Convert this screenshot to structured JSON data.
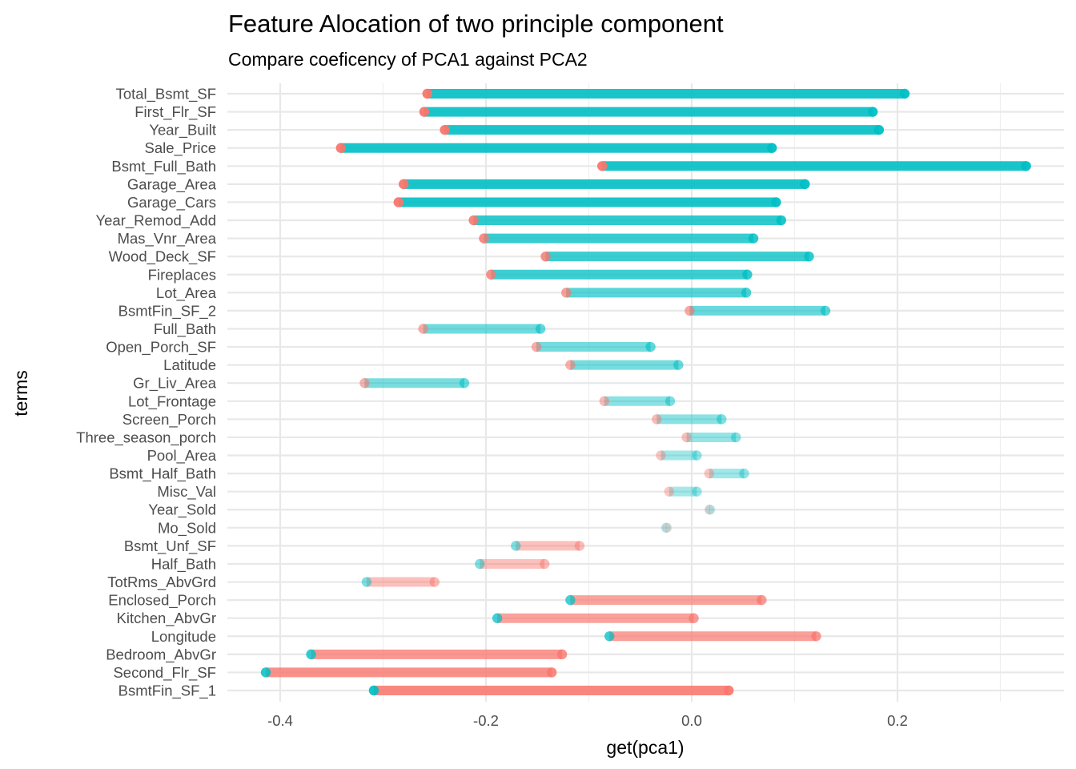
{
  "chart_data": {
    "type": "dumbbell",
    "title": "Feature Alocation of two principle component",
    "subtitle": "Compare coeficency of PCA1 against PCA2",
    "xlabel": "get(pca1)",
    "ylabel": "terms",
    "xlim": [
      -0.445,
      0.362
    ],
    "x_ticks": [
      -0.4,
      -0.2,
      0.0,
      0.2
    ],
    "x_tick_labels": [
      "-0.4",
      "-0.2",
      "0.0",
      "0.2"
    ],
    "x_minor_ticks": [
      -0.3,
      -0.1,
      0.1,
      0.3
    ],
    "grid": true,
    "legend": "none",
    "colors": {
      "red": "#F8766D",
      "teal": "#00BFC4"
    },
    "series": [
      {
        "name": "red",
        "color": "#F8766D"
      },
      {
        "name": "teal",
        "color": "#00BFC4"
      }
    ],
    "rows": [
      {
        "term": "Total_Bsmt_SF",
        "red": -0.257,
        "teal": 0.207
      },
      {
        "term": "First_Flr_SF",
        "red": -0.26,
        "teal": 0.176
      },
      {
        "term": "Year_Built",
        "red": -0.24,
        "teal": 0.182
      },
      {
        "term": "Sale_Price",
        "red": -0.341,
        "teal": 0.078
      },
      {
        "term": "Bsmt_Full_Bath",
        "red": -0.087,
        "teal": 0.325
      },
      {
        "term": "Garage_Area",
        "red": -0.28,
        "teal": 0.11
      },
      {
        "term": "Garage_Cars",
        "red": -0.285,
        "teal": 0.082
      },
      {
        "term": "Year_Remod_Add",
        "red": -0.212,
        "teal": 0.087
      },
      {
        "term": "Mas_Vnr_Area",
        "red": -0.202,
        "teal": 0.06
      },
      {
        "term": "Wood_Deck_SF",
        "red": -0.142,
        "teal": 0.114
      },
      {
        "term": "Fireplaces",
        "red": -0.195,
        "teal": 0.054
      },
      {
        "term": "Lot_Area",
        "red": -0.122,
        "teal": 0.053
      },
      {
        "term": "BsmtFin_SF_2",
        "red": -0.002,
        "teal": 0.13
      },
      {
        "term": "Full_Bath",
        "red": -0.261,
        "teal": -0.147
      },
      {
        "term": "Open_Porch_SF",
        "red": -0.151,
        "teal": -0.04
      },
      {
        "term": "Latitude",
        "red": -0.118,
        "teal": -0.013
      },
      {
        "term": "Gr_Liv_Area",
        "red": -0.318,
        "teal": -0.221
      },
      {
        "term": "Lot_Frontage",
        "red": -0.085,
        "teal": -0.021
      },
      {
        "term": "Screen_Porch",
        "red": -0.034,
        "teal": 0.029
      },
      {
        "term": "Three_season_porch",
        "red": -0.005,
        "teal": 0.043
      },
      {
        "term": "Pool_Area",
        "red": -0.03,
        "teal": 0.005
      },
      {
        "term": "Bsmt_Half_Bath",
        "red": 0.017,
        "teal": 0.051
      },
      {
        "term": "Misc_Val",
        "red": -0.022,
        "teal": 0.005
      },
      {
        "term": "Year_Sold",
        "red": 0.017,
        "teal": 0.018
      },
      {
        "term": "Mo_Sold",
        "red": -0.024,
        "teal": -0.025
      },
      {
        "term": "Bsmt_Unf_SF",
        "red": -0.109,
        "teal": -0.171
      },
      {
        "term": "Half_Bath",
        "red": -0.143,
        "teal": -0.206
      },
      {
        "term": "TotRms_AbvGrd",
        "red": -0.25,
        "teal": -0.316
      },
      {
        "term": "Enclosed_Porch",
        "red": 0.068,
        "teal": -0.118
      },
      {
        "term": "Kitchen_AbvGr",
        "red": 0.002,
        "teal": -0.189
      },
      {
        "term": "Longitude",
        "red": 0.121,
        "teal": -0.08
      },
      {
        "term": "Bedroom_AbvGr",
        "red": -0.126,
        "teal": -0.37
      },
      {
        "term": "Second_Flr_SF",
        "red": -0.136,
        "teal": -0.414
      },
      {
        "term": "BsmtFin_SF_1",
        "red": 0.036,
        "teal": -0.309
      }
    ]
  }
}
